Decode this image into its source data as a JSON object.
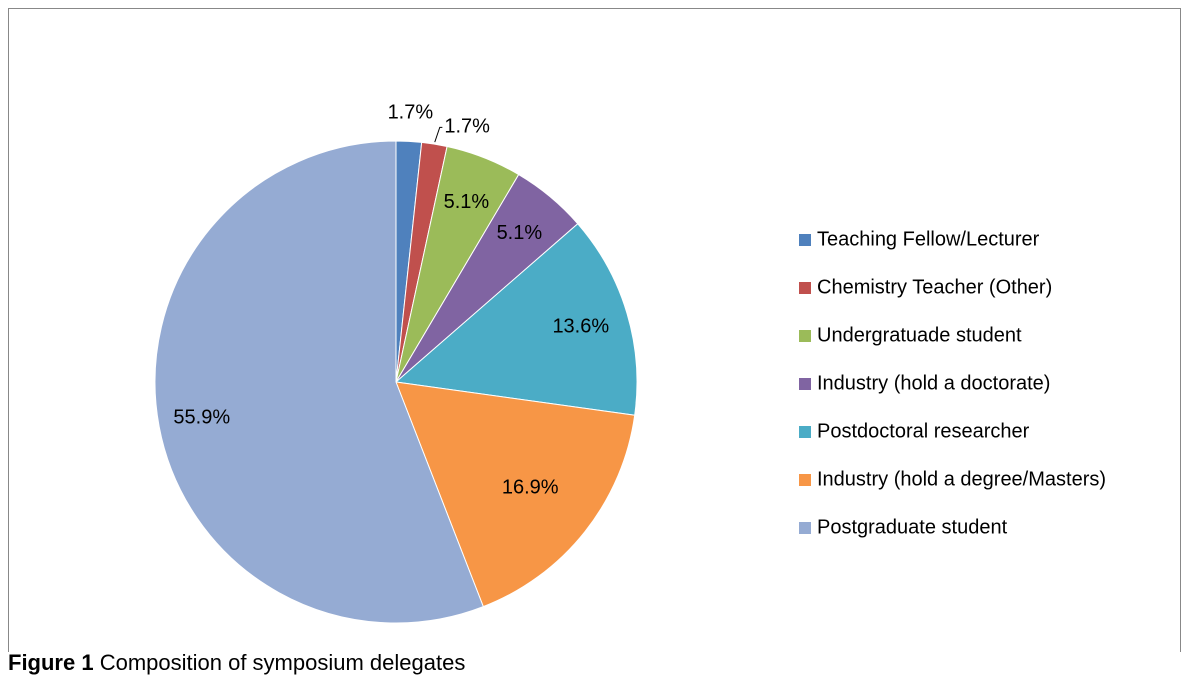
{
  "chart_data": {
    "type": "pie",
    "categories": [
      "Teaching Fellow/Lecturer",
      "Chemistry Teacher (Other)",
      "Undergratuade student",
      "Industry (hold a doctorate)",
      "Postdoctoral researcher",
      "Industry (hold a degree/Masters)",
      "Postgraduate student"
    ],
    "values": [
      1.7,
      1.7,
      5.1,
      5.1,
      13.6,
      16.9,
      55.9
    ],
    "value_labels": [
      "1.7%",
      "1.7%",
      "5.1%",
      "5.1%",
      "13.6%",
      "16.9%",
      "55.9%"
    ],
    "colors": [
      "#4f81bd",
      "#c0504d",
      "#9bbb59",
      "#8064a2",
      "#4bacc6",
      "#f79646",
      "#95abd3"
    ],
    "legend": "right"
  },
  "caption": {
    "label": "Figure 1",
    "text": "Composition of symposium delegates"
  }
}
